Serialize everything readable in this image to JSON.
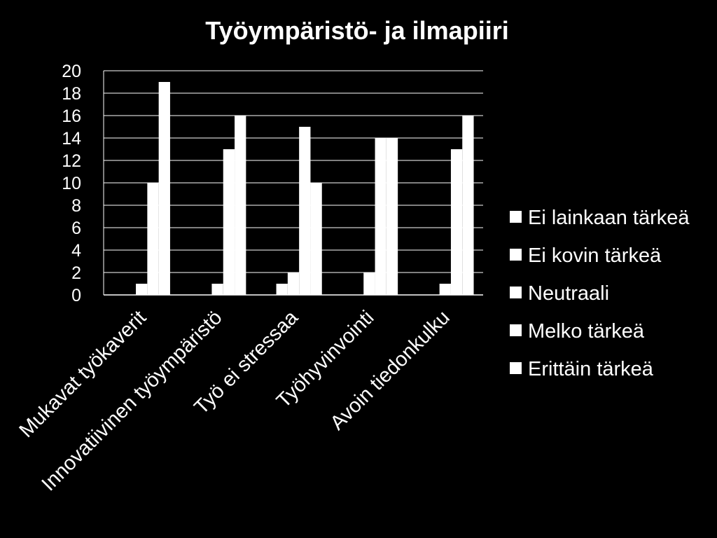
{
  "chart_data": {
    "type": "bar",
    "title": "Työympäristö- ja ilmapiiri",
    "xlabel": "",
    "ylabel": "",
    "ylim": [
      0,
      20
    ],
    "yticks": [
      0,
      2,
      4,
      6,
      8,
      10,
      12,
      14,
      16,
      18,
      20
    ],
    "grid": true,
    "legend_position": "right",
    "categories": [
      "Mukavat työkaverit",
      "Innovatiivinen työympäristö",
      "Työ ei stressaa",
      "Työhyvinvointi",
      "Avoin tiedonkulku"
    ],
    "series": [
      {
        "name": "Ei lainkaan tärkeä",
        "values": [
          0,
          0,
          0,
          0,
          0
        ]
      },
      {
        "name": "Ei kovin tärkeä",
        "values": [
          0,
          0,
          1,
          0,
          0
        ]
      },
      {
        "name": "Neutraali",
        "values": [
          1,
          1,
          2,
          2,
          1
        ]
      },
      {
        "name": "Melko tärkeä",
        "values": [
          10,
          13,
          15,
          14,
          13
        ]
      },
      {
        "name": "Erittäin tärkeä",
        "values": [
          19,
          16,
          10,
          14,
          16
        ]
      }
    ],
    "colors": {
      "background": "#000000",
      "bar": "#ffffff",
      "gridline": "#ffffff",
      "text": "#ffffff"
    }
  }
}
